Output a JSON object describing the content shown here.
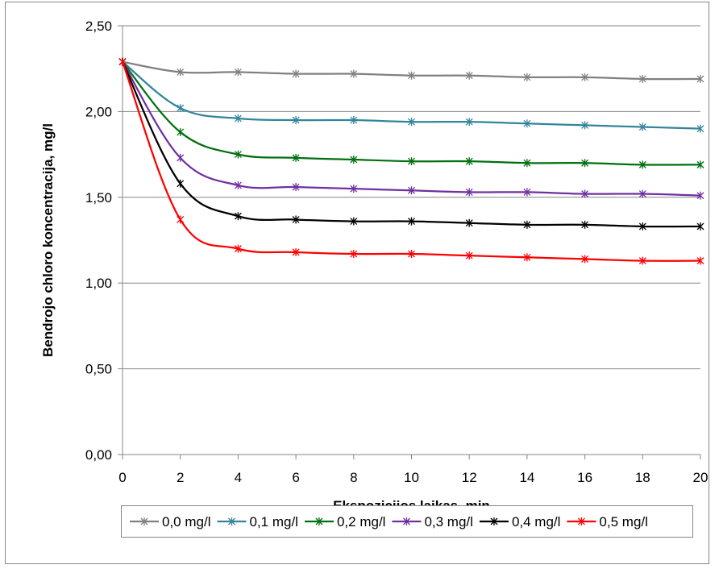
{
  "chart_data": {
    "type": "line",
    "title": "",
    "xlabel": "Ekspozicijos laikas, min",
    "ylabel": "Bendrojo chloro koncentracija, mg/l",
    "x": [
      0,
      2,
      4,
      6,
      8,
      10,
      12,
      14,
      16,
      18,
      20
    ],
    "xticks": [
      "0",
      "2",
      "4",
      "6",
      "8",
      "10",
      "12",
      "14",
      "16",
      "18",
      "20"
    ],
    "yticks": [
      "0,00",
      "0,50",
      "1,00",
      "1,50",
      "2,00",
      "2,50"
    ],
    "xlim": [
      0,
      20
    ],
    "ylim": [
      0,
      2.5
    ],
    "grid": "horizontal",
    "legend_position": "bottom",
    "series": [
      {
        "name": "0,0 mg/l",
        "color": "#808080",
        "values": [
          2.29,
          2.23,
          2.23,
          2.22,
          2.22,
          2.21,
          2.21,
          2.2,
          2.2,
          2.19,
          2.19
        ]
      },
      {
        "name": "0,1 mg/l",
        "color": "#31859C",
        "values": [
          2.29,
          2.02,
          1.96,
          1.95,
          1.95,
          1.94,
          1.94,
          1.93,
          1.92,
          1.91,
          1.9
        ]
      },
      {
        "name": "0,2 mg/l",
        "color": "#00700F",
        "values": [
          2.29,
          1.88,
          1.75,
          1.73,
          1.72,
          1.71,
          1.71,
          1.7,
          1.7,
          1.69,
          1.69
        ]
      },
      {
        "name": "0,3 mg/l",
        "color": "#7030A0",
        "values": [
          2.29,
          1.73,
          1.57,
          1.56,
          1.55,
          1.54,
          1.53,
          1.53,
          1.52,
          1.52,
          1.51
        ]
      },
      {
        "name": "0,4 mg/l",
        "color": "#000000",
        "values": [
          2.29,
          1.58,
          1.39,
          1.37,
          1.36,
          1.36,
          1.35,
          1.34,
          1.34,
          1.33,
          1.33
        ]
      },
      {
        "name": "0,5 mg/l",
        "color": "#FF0000",
        "values": [
          2.29,
          1.37,
          1.2,
          1.18,
          1.17,
          1.17,
          1.16,
          1.15,
          1.14,
          1.13,
          1.13
        ]
      }
    ]
  }
}
